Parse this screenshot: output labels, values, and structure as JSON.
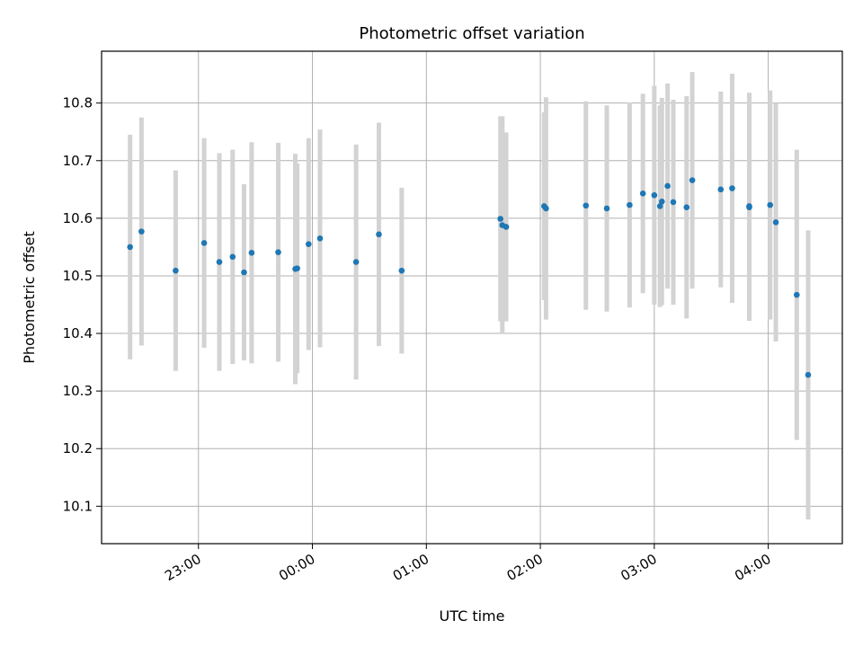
{
  "chart_data": {
    "type": "scatter",
    "title": "Photometric offset variation",
    "xlabel": "UTC time",
    "ylabel": "Photometric offset",
    "x_ticks": [
      "23:00",
      "00:00",
      "01:00",
      "02:00",
      "03:00",
      "04:00"
    ],
    "x_tick_hours": [
      23,
      24,
      25,
      26,
      27,
      28
    ],
    "xlim_hours": [
      22.15,
      28.65
    ],
    "y_ticks": [
      "10.1",
      "10.2",
      "10.3",
      "10.4",
      "10.5",
      "10.6",
      "10.7",
      "10.8"
    ],
    "ylim": [
      10.035,
      10.89
    ],
    "grid": true,
    "colors": {
      "point": "#1f77b4",
      "errorbar": "#d3d3d3",
      "grid": "#b0b0b0"
    },
    "points": [
      {
        "x": "22:24",
        "y": 10.55,
        "err": 0.195
      },
      {
        "x": "22:30",
        "y": 10.577,
        "err": 0.198
      },
      {
        "x": "22:48",
        "y": 10.509,
        "err": 0.174
      },
      {
        "x": "23:03",
        "y": 10.557,
        "err": 0.182
      },
      {
        "x": "23:11",
        "y": 10.524,
        "err": 0.189
      },
      {
        "x": "23:18",
        "y": 10.533,
        "err": 0.186
      },
      {
        "x": "23:24",
        "y": 10.506,
        "err": 0.153
      },
      {
        "x": "23:28",
        "y": 10.54,
        "err": 0.192
      },
      {
        "x": "23:42",
        "y": 10.541,
        "err": 0.19
      },
      {
        "x": "23:51",
        "y": 10.512,
        "err": 0.2
      },
      {
        "x": "23:52",
        "y": 10.513,
        "err": 0.182
      },
      {
        "x": "23:58",
        "y": 10.555,
        "err": 0.184
      },
      {
        "x": "00:04",
        "y": 10.565,
        "err": 0.189
      },
      {
        "x": "00:23",
        "y": 10.524,
        "err": 0.204
      },
      {
        "x": "00:35",
        "y": 10.572,
        "err": 0.194
      },
      {
        "x": "00:47",
        "y": 10.509,
        "err": 0.144
      },
      {
        "x": "01:39",
        "y": 10.599,
        "err": 0.178
      },
      {
        "x": "01:40",
        "y": 10.588,
        "err": 0.189
      },
      {
        "x": "01:42",
        "y": 10.585,
        "err": 0.164
      },
      {
        "x": "02:02",
        "y": 10.621,
        "err": 0.163
      },
      {
        "x": "02:03",
        "y": 10.617,
        "err": 0.193
      },
      {
        "x": "02:24",
        "y": 10.622,
        "err": 0.181
      },
      {
        "x": "02:35",
        "y": 10.617,
        "err": 0.179
      },
      {
        "x": "02:47",
        "y": 10.623,
        "err": 0.178
      },
      {
        "x": "02:54",
        "y": 10.643,
        "err": 0.173
      },
      {
        "x": "03:00",
        "y": 10.64,
        "err": 0.19
      },
      {
        "x": "03:03",
        "y": 10.621,
        "err": 0.175
      },
      {
        "x": "03:04",
        "y": 10.629,
        "err": 0.18
      },
      {
        "x": "03:07",
        "y": 10.656,
        "err": 0.178
      },
      {
        "x": "03:10",
        "y": 10.628,
        "err": 0.178
      },
      {
        "x": "03:17",
        "y": 10.619,
        "err": 0.193
      },
      {
        "x": "03:20",
        "y": 10.666,
        "err": 0.188
      },
      {
        "x": "03:35",
        "y": 10.65,
        "err": 0.17
      },
      {
        "x": "03:41",
        "y": 10.652,
        "err": 0.199
      },
      {
        "x": "03:50",
        "y": 10.619,
        "err": 0.197
      },
      {
        "x": "03:50",
        "y": 10.621,
        "err": 0.197
      },
      {
        "x": "04:01",
        "y": 10.623,
        "err": 0.199
      },
      {
        "x": "04:04",
        "y": 10.593,
        "err": 0.207
      },
      {
        "x": "04:15",
        "y": 10.467,
        "err": 0.252
      },
      {
        "x": "04:21",
        "y": 10.328,
        "err": 0.251
      }
    ]
  }
}
